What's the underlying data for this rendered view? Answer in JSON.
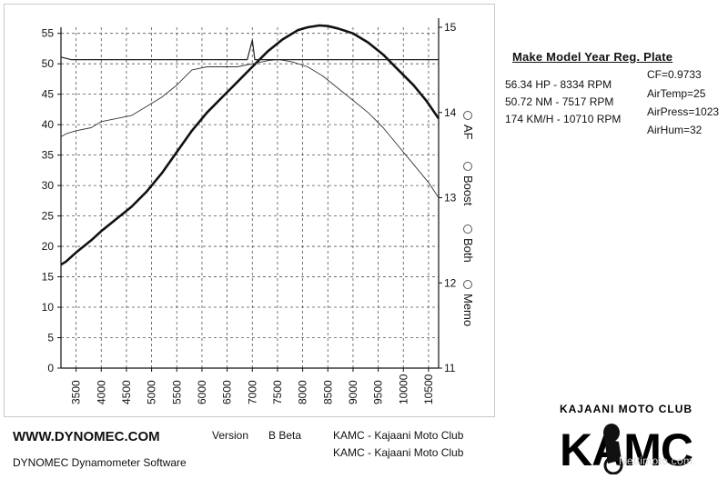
{
  "chart_data": {
    "type": "line",
    "x_ticks": [
      3500,
      4000,
      4500,
      5000,
      5500,
      6000,
      6500,
      7000,
      7500,
      8000,
      8500,
      9000,
      9500,
      10000,
      10500
    ],
    "xlim": [
      3200,
      10700
    ],
    "ylim_left": [
      0,
      56
    ],
    "y_ticks_left": [
      0,
      5,
      10,
      15,
      20,
      25,
      30,
      35,
      40,
      45,
      50,
      55
    ],
    "ylim_right": [
      11,
      15
    ],
    "y_ticks_right": [
      11,
      12,
      13,
      14,
      15
    ],
    "grid": true,
    "series": [
      {
        "axis": "left",
        "x": [
          3200,
          3300,
          3500,
          3800,
          4000,
          4300,
          4600,
          4900,
          5200,
          5500,
          5800,
          6100,
          6400,
          6700,
          7000,
          7300,
          7600,
          7900,
          8100,
          8334,
          8500,
          8700,
          9000,
          9300,
          9600,
          9900,
          10200,
          10450,
          10700
        ],
        "values": [
          17,
          17.5,
          19,
          21,
          22.5,
          24.5,
          26.5,
          29,
          32,
          35.5,
          39,
          42,
          44.5,
          47,
          49.5,
          52,
          54,
          55.5,
          56,
          56.3,
          56.2,
          55.8,
          55,
          53.5,
          51.5,
          49,
          46.5,
          44,
          41
        ]
      },
      {
        "axis": "left",
        "x": [
          3200,
          3300,
          3500,
          3800,
          4000,
          4300,
          4600,
          4900,
          5200,
          5500,
          5800,
          6100,
          6400,
          6700,
          7000,
          7300,
          7517,
          7800,
          8100,
          8400,
          8700,
          9000,
          9300,
          9600,
          9900,
          10200,
          10500,
          10700
        ],
        "values": [
          38,
          38.5,
          39,
          39.5,
          40.5,
          41,
          41.5,
          43,
          44.5,
          46.5,
          49,
          49.5,
          49.5,
          49.5,
          50,
          50.5,
          50.72,
          50.3,
          49.5,
          48,
          46,
          44,
          42,
          39.5,
          36.5,
          33.5,
          30.5,
          28
        ]
      },
      {
        "axis": "right",
        "x": [
          3200,
          3400,
          4000,
          5000,
          6000,
          6900,
          7000,
          7050,
          7100,
          7200,
          8000,
          9000,
          10000,
          10700
        ],
        "values": [
          14.65,
          14.62,
          14.62,
          14.62,
          14.62,
          14.62,
          14.85,
          14.62,
          14.62,
          14.62,
          14.62,
          14.62,
          14.62,
          14.62
        ]
      }
    ]
  },
  "sidebar": {
    "options": [
      "AF",
      "Boost",
      "Both",
      "Memo"
    ]
  },
  "info": {
    "header": "Make Model  Year  Reg. Plate",
    "peaks": [
      "56.34 HP - 8334 RPM",
      "50.72 NM - 7517 RPM",
      "174 KM/H - 10710 RPM"
    ],
    "conditions": [
      "CF=0.9733",
      "AirTemp=25",
      "AirPress=1023",
      "AirHum=32"
    ]
  },
  "footer": {
    "url": "WWW.DYNOMEC.COM",
    "software": "DYNOMEC Dynamometer Software",
    "version_label": "Version",
    "version_value": "B Beta",
    "club_line_1": "KAMC - Kajaani Moto Club",
    "club_line_2": "KAMC - Kajaani Moto Club"
  },
  "logo": {
    "top_text": "KAJAANI MOTO CLUB",
    "main_text": "KAMC"
  },
  "watermark": "Nettimoto.com"
}
